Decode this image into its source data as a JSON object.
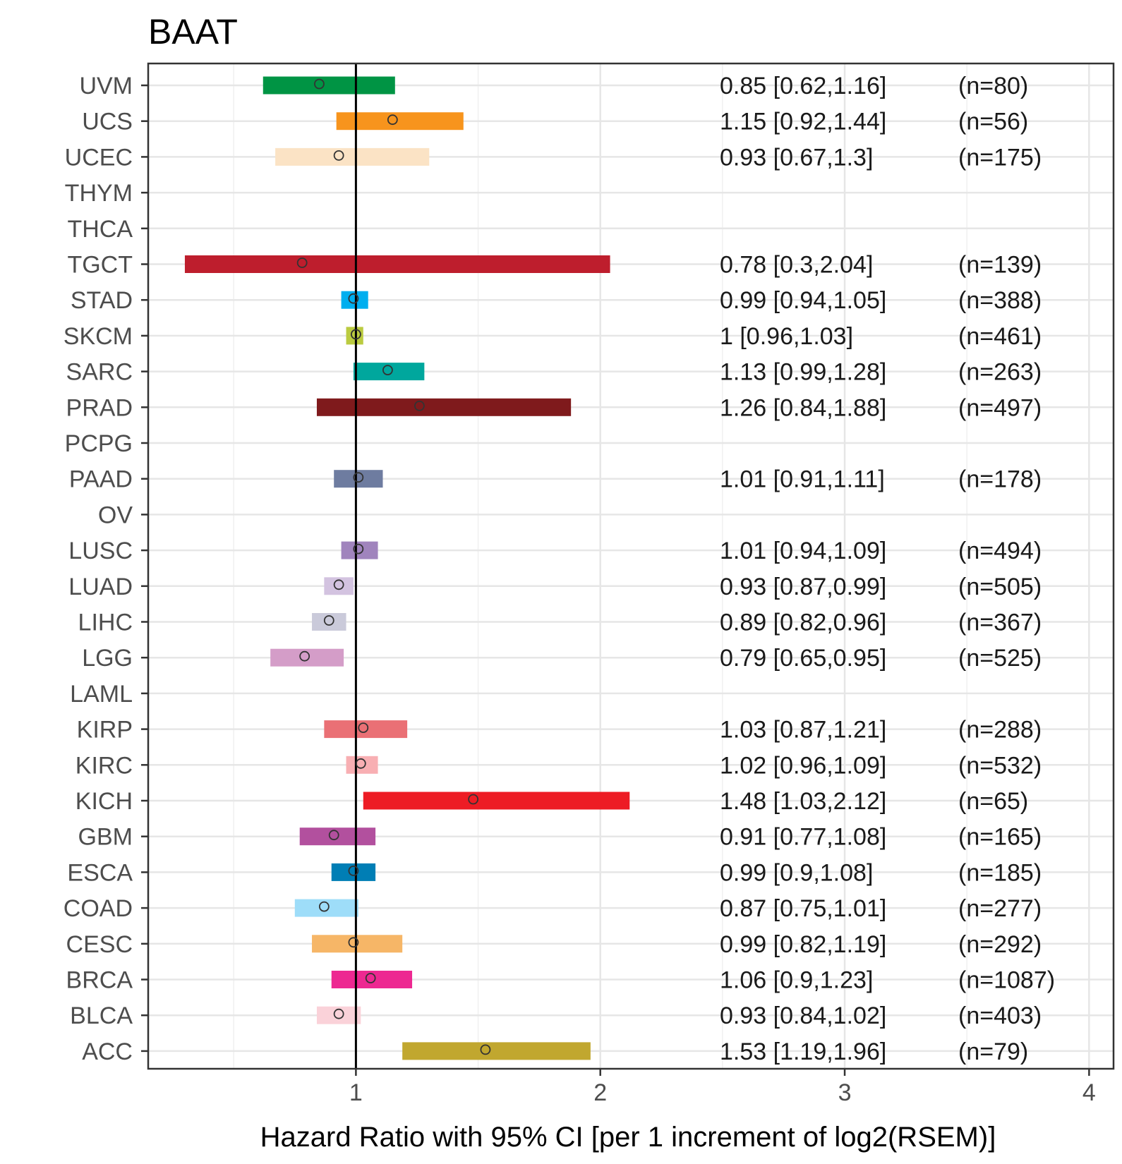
{
  "chart_data": {
    "type": "forest",
    "title": "BAAT",
    "xlabel": "Hazard Ratio with 95% CI [per 1 increment of log2(RSEM)]",
    "ylabel": "",
    "xlim": [
      0.15,
      4.1
    ],
    "x_ticks": [
      1,
      2,
      3,
      4
    ],
    "x_tick_labels": [
      "1",
      "2",
      "3",
      "4"
    ],
    "reference_line": 1,
    "grid": true,
    "rows": [
      {
        "label": "UVM",
        "hr": 0.85,
        "lo": 0.62,
        "hi": 1.16,
        "text": "0.85 [0.62,1.16]",
        "n": "(n=80)",
        "color": "#009444"
      },
      {
        "label": "UCS",
        "hr": 1.15,
        "lo": 0.92,
        "hi": 1.44,
        "text": "1.15 [0.92,1.44]",
        "n": "(n=56)",
        "color": "#F7941D"
      },
      {
        "label": "UCEC",
        "hr": 0.93,
        "lo": 0.67,
        "hi": 1.3,
        "text": "0.93 [0.67,1.3]",
        "n": "(n=175)",
        "color": "#FBE3C5"
      },
      {
        "label": "THYM",
        "hr": null,
        "lo": null,
        "hi": null,
        "text": "",
        "n": "",
        "color": ""
      },
      {
        "label": "THCA",
        "hr": null,
        "lo": null,
        "hi": null,
        "text": "",
        "n": "",
        "color": ""
      },
      {
        "label": "TGCT",
        "hr": 0.78,
        "lo": 0.3,
        "hi": 2.04,
        "text": "0.78 [0.3,2.04]",
        "n": "(n=139)",
        "color": "#BE1E2D"
      },
      {
        "label": "STAD",
        "hr": 0.99,
        "lo": 0.94,
        "hi": 1.05,
        "text": "0.99 [0.94,1.05]",
        "n": "(n=388)",
        "color": "#00AEEF"
      },
      {
        "label": "SKCM",
        "hr": 1.0,
        "lo": 0.96,
        "hi": 1.03,
        "text": "1 [0.96,1.03]",
        "n": "(n=461)",
        "color": "#BBCB40"
      },
      {
        "label": "SARC",
        "hr": 1.13,
        "lo": 0.99,
        "hi": 1.28,
        "text": "1.13 [0.99,1.28]",
        "n": "(n=263)",
        "color": "#00A79D"
      },
      {
        "label": "PRAD",
        "hr": 1.26,
        "lo": 0.84,
        "hi": 1.88,
        "text": "1.26 [0.84,1.88]",
        "n": "(n=497)",
        "color": "#7F1A1C"
      },
      {
        "label": "PCPG",
        "hr": null,
        "lo": null,
        "hi": null,
        "text": "",
        "n": "",
        "color": ""
      },
      {
        "label": "PAAD",
        "hr": 1.01,
        "lo": 0.91,
        "hi": 1.11,
        "text": "1.01 [0.91,1.11]",
        "n": "(n=178)",
        "color": "#6E7CA0"
      },
      {
        "label": "OV",
        "hr": null,
        "lo": null,
        "hi": null,
        "text": "",
        "n": "",
        "color": ""
      },
      {
        "label": "LUSC",
        "hr": 1.01,
        "lo": 0.94,
        "hi": 1.09,
        "text": "1.01 [0.94,1.09]",
        "n": "(n=494)",
        "color": "#A084BD"
      },
      {
        "label": "LUAD",
        "hr": 0.93,
        "lo": 0.87,
        "hi": 0.99,
        "text": "0.93 [0.87,0.99]",
        "n": "(n=505)",
        "color": "#D3C3E0"
      },
      {
        "label": "LIHC",
        "hr": 0.89,
        "lo": 0.82,
        "hi": 0.96,
        "text": "0.89 [0.82,0.96]",
        "n": "(n=367)",
        "color": "#CACADA"
      },
      {
        "label": "LGG",
        "hr": 0.79,
        "lo": 0.65,
        "hi": 0.95,
        "text": "0.79 [0.65,0.95]",
        "n": "(n=525)",
        "color": "#D49DC8"
      },
      {
        "label": "LAML",
        "hr": null,
        "lo": null,
        "hi": null,
        "text": "",
        "n": "",
        "color": ""
      },
      {
        "label": "KIRP",
        "hr": 1.03,
        "lo": 0.87,
        "hi": 1.21,
        "text": "1.03 [0.87,1.21]",
        "n": "(n=288)",
        "color": "#EA7075"
      },
      {
        "label": "KIRC",
        "hr": 1.02,
        "lo": 0.96,
        "hi": 1.09,
        "text": "1.02 [0.96,1.09]",
        "n": "(n=532)",
        "color": "#F8AFB3"
      },
      {
        "label": "KICH",
        "hr": 1.48,
        "lo": 1.03,
        "hi": 2.12,
        "text": "1.48 [1.03,2.12]",
        "n": "(n=65)",
        "color": "#ED1C24"
      },
      {
        "label": "GBM",
        "hr": 0.91,
        "lo": 0.77,
        "hi": 1.08,
        "text": "0.91 [0.77,1.08]",
        "n": "(n=165)",
        "color": "#B2509E"
      },
      {
        "label": "ESCA",
        "hr": 0.99,
        "lo": 0.9,
        "hi": 1.08,
        "text": "0.99 [0.9,1.08]",
        "n": "(n=185)",
        "color": "#007EB5"
      },
      {
        "label": "COAD",
        "hr": 0.87,
        "lo": 0.75,
        "hi": 1.01,
        "text": "0.87 [0.75,1.01]",
        "n": "(n=277)",
        "color": "#9EDDF9"
      },
      {
        "label": "CESC",
        "hr": 0.99,
        "lo": 0.82,
        "hi": 1.19,
        "text": "0.99 [0.82,1.19]",
        "n": "(n=292)",
        "color": "#F6B667"
      },
      {
        "label": "BRCA",
        "hr": 1.06,
        "lo": 0.9,
        "hi": 1.23,
        "text": "1.06 [0.9,1.23]",
        "n": "(n=1087)",
        "color": "#ED2891"
      },
      {
        "label": "BLCA",
        "hr": 0.93,
        "lo": 0.84,
        "hi": 1.02,
        "text": "0.93 [0.84,1.02]",
        "n": "(n=403)",
        "color": "#FAD2D9"
      },
      {
        "label": "ACC",
        "hr": 1.53,
        "lo": 1.19,
        "hi": 1.96,
        "text": "1.53 [1.19,1.96]",
        "n": "(n=79)",
        "color": "#C1A72F"
      }
    ]
  }
}
